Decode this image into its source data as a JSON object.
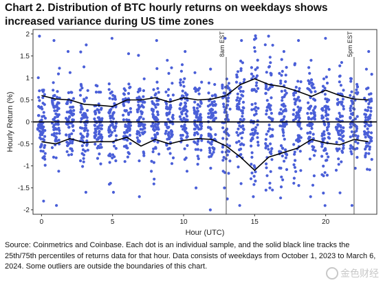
{
  "title": "Chart 2. Distribution of BTC hourly returns on weekdays shows increased variance during US time zones",
  "source": "Source: Coinmetrics and Coinbase. Each dot is an individual sample, and the solid black line tracks the 25th/75th percentiles of returns data for that hour. Data consists of weekdays from October 1, 2023 to March 6, 2024. Some outliers are outside the boundaries of this chart.",
  "watermark": "金色财经",
  "colors": {
    "dots": "#4a5fd8",
    "lines": "#000000",
    "frame": "#333333"
  },
  "chart_data": {
    "type": "scatter",
    "title": "",
    "xlabel": "Hour (UTC)",
    "ylabel": "Hourly Return (%)",
    "xlim": [
      -0.6,
      23.6
    ],
    "ylim": [
      -2.1,
      2.1
    ],
    "xticks": [
      0,
      5,
      10,
      15,
      20
    ],
    "yticks": [
      -2,
      -1.5,
      -1,
      -0.5,
      0,
      0.5,
      1,
      1.5,
      2
    ],
    "grid": false,
    "zero_line": true,
    "x": [
      0,
      1,
      2,
      3,
      4,
      5,
      6,
      7,
      8,
      9,
      10,
      11,
      12,
      13,
      14,
      15,
      16,
      17,
      18,
      19,
      20,
      21,
      22,
      23
    ],
    "series": [
      {
        "values": [
          0.6,
          0.52,
          0.5,
          0.4,
          0.38,
          0.35,
          0.5,
          0.5,
          0.55,
          0.45,
          0.55,
          0.5,
          0.52,
          0.6,
          0.85,
          0.98,
          0.85,
          0.8,
          0.7,
          0.58,
          0.72,
          0.6,
          0.52,
          0.5
        ]
      },
      {
        "values": [
          -0.45,
          -0.5,
          -0.38,
          -0.47,
          -0.45,
          -0.45,
          -0.35,
          -0.55,
          -0.4,
          -0.5,
          -0.42,
          -0.38,
          -0.4,
          -0.55,
          -0.8,
          -1.1,
          -0.8,
          -0.7,
          -0.6,
          -0.4,
          -0.48,
          -0.52,
          -0.4,
          -0.45
        ]
      }
    ],
    "spread": [
      0.45,
      0.42,
      0.4,
      0.38,
      0.37,
      0.38,
      0.4,
      0.42,
      0.45,
      0.42,
      0.44,
      0.42,
      0.45,
      0.55,
      0.7,
      0.8,
      0.7,
      0.6,
      0.55,
      0.5,
      0.52,
      0.5,
      0.45,
      0.42
    ],
    "outliers": [
      {
        "x": 0,
        "y": 1.95
      },
      {
        "x": 0,
        "y": -1.8
      },
      {
        "x": 1,
        "y": 1.85
      },
      {
        "x": 1,
        "y": -1.9
      },
      {
        "x": 2,
        "y": 1.6
      },
      {
        "x": 3,
        "y": 1.75
      },
      {
        "x": 3,
        "y": -1.6
      },
      {
        "x": 5,
        "y": -1.6
      },
      {
        "x": 5,
        "y": 1.9
      },
      {
        "x": 6,
        "y": 1.55
      },
      {
        "x": 7,
        "y": -1.7
      },
      {
        "x": 8,
        "y": 1.85
      },
      {
        "x": 8,
        "y": -1.3
      },
      {
        "x": 9,
        "y": 1.4
      },
      {
        "x": 10,
        "y": 1.6
      },
      {
        "x": 11,
        "y": -1.5
      },
      {
        "x": 12,
        "y": 1.2
      },
      {
        "x": 12,
        "y": -2.0
      },
      {
        "x": 13,
        "y": 1.9
      },
      {
        "x": 13,
        "y": -1.75
      },
      {
        "x": 14,
        "y": 1.85
      },
      {
        "x": 14,
        "y": -1.9
      },
      {
        "x": 15,
        "y": 1.9
      },
      {
        "x": 15,
        "y": -1.7
      },
      {
        "x": 16,
        "y": 1.95
      },
      {
        "x": 16,
        "y": -1.5
      },
      {
        "x": 17,
        "y": 1.6
      },
      {
        "x": 18,
        "y": 1.85
      },
      {
        "x": 19,
        "y": 1.4
      },
      {
        "x": 19,
        "y": -1.7
      },
      {
        "x": 20,
        "y": 1.9
      },
      {
        "x": 21,
        "y": 1.35
      },
      {
        "x": 22,
        "y": -1.9
      },
      {
        "x": 23,
        "y": 1.6
      }
    ],
    "annotations": [
      {
        "x": 13,
        "text": "8am EST"
      },
      {
        "x": 22,
        "text": "5pm EST"
      }
    ]
  }
}
